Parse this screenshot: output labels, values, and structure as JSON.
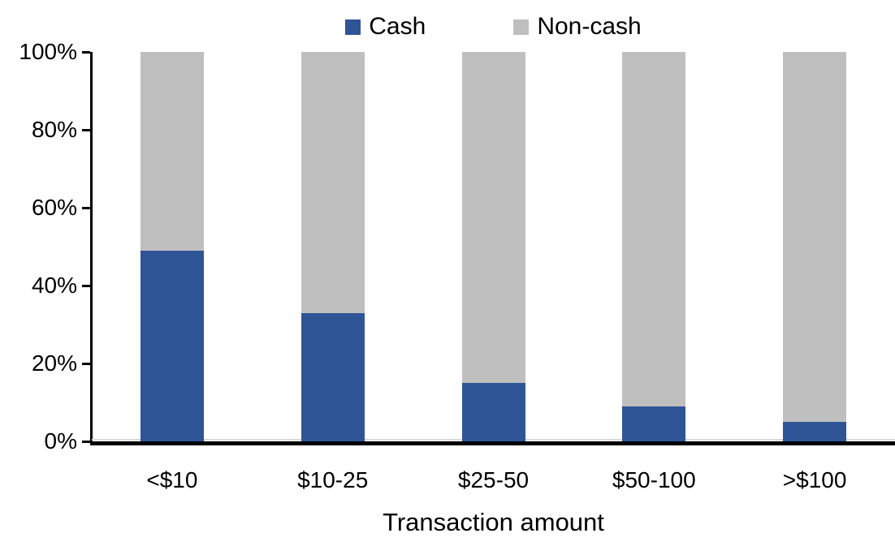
{
  "chart_data": {
    "type": "bar",
    "stacked": true,
    "orientation": "vertical",
    "title": "",
    "xlabel": "Transaction amount",
    "ylabel": "",
    "categories": [
      "<$10",
      "$10-25",
      "$25-50",
      "$50-100",
      ">$100"
    ],
    "series": [
      {
        "name": "Cash",
        "color": "#2F5596",
        "values": [
          49,
          33,
          15,
          9,
          5
        ]
      },
      {
        "name": "Non-cash",
        "color": "#BFBFBF",
        "values": [
          51,
          67,
          85,
          91,
          95
        ]
      }
    ],
    "ylim": [
      0,
      100
    ],
    "yticks": [
      {
        "value": 0,
        "label": "0%"
      },
      {
        "value": 20,
        "label": "20%"
      },
      {
        "value": 40,
        "label": "40%"
      },
      {
        "value": 60,
        "label": "60%"
      },
      {
        "value": 80,
        "label": "80%"
      },
      {
        "value": 100,
        "label": "100%"
      }
    ],
    "legend_position": "top-center",
    "grid": false,
    "colors": {
      "axis": "#000000",
      "text": "#000000",
      "zero_line": "#D9D9D9",
      "background": "#FFFFFF"
    }
  }
}
